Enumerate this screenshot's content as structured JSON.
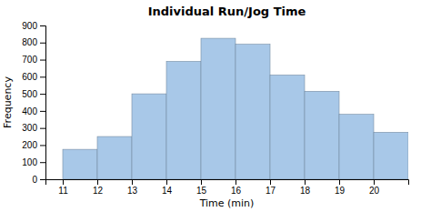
{
  "chart_data": {
    "type": "histogram",
    "title": "Individual Run/Jog Time",
    "xlabel": "Time (min)",
    "ylabel": "Frequency",
    "bins": [
      11,
      12,
      13,
      14,
      15,
      16,
      17,
      18,
      19,
      20,
      21
    ],
    "values": [
      175,
      250,
      500,
      690,
      825,
      790,
      610,
      515,
      380,
      275
    ],
    "color": "#a8c8e8",
    "xlim": [
      10.5,
      21
    ],
    "xticks": [
      11,
      12,
      13,
      14,
      15,
      16,
      17,
      18,
      19,
      20
    ],
    "ylim": [
      0,
      900
    ],
    "yticks": [
      0,
      100,
      200,
      300,
      400,
      500,
      600,
      700,
      800,
      900
    ],
    "grid": false
  }
}
